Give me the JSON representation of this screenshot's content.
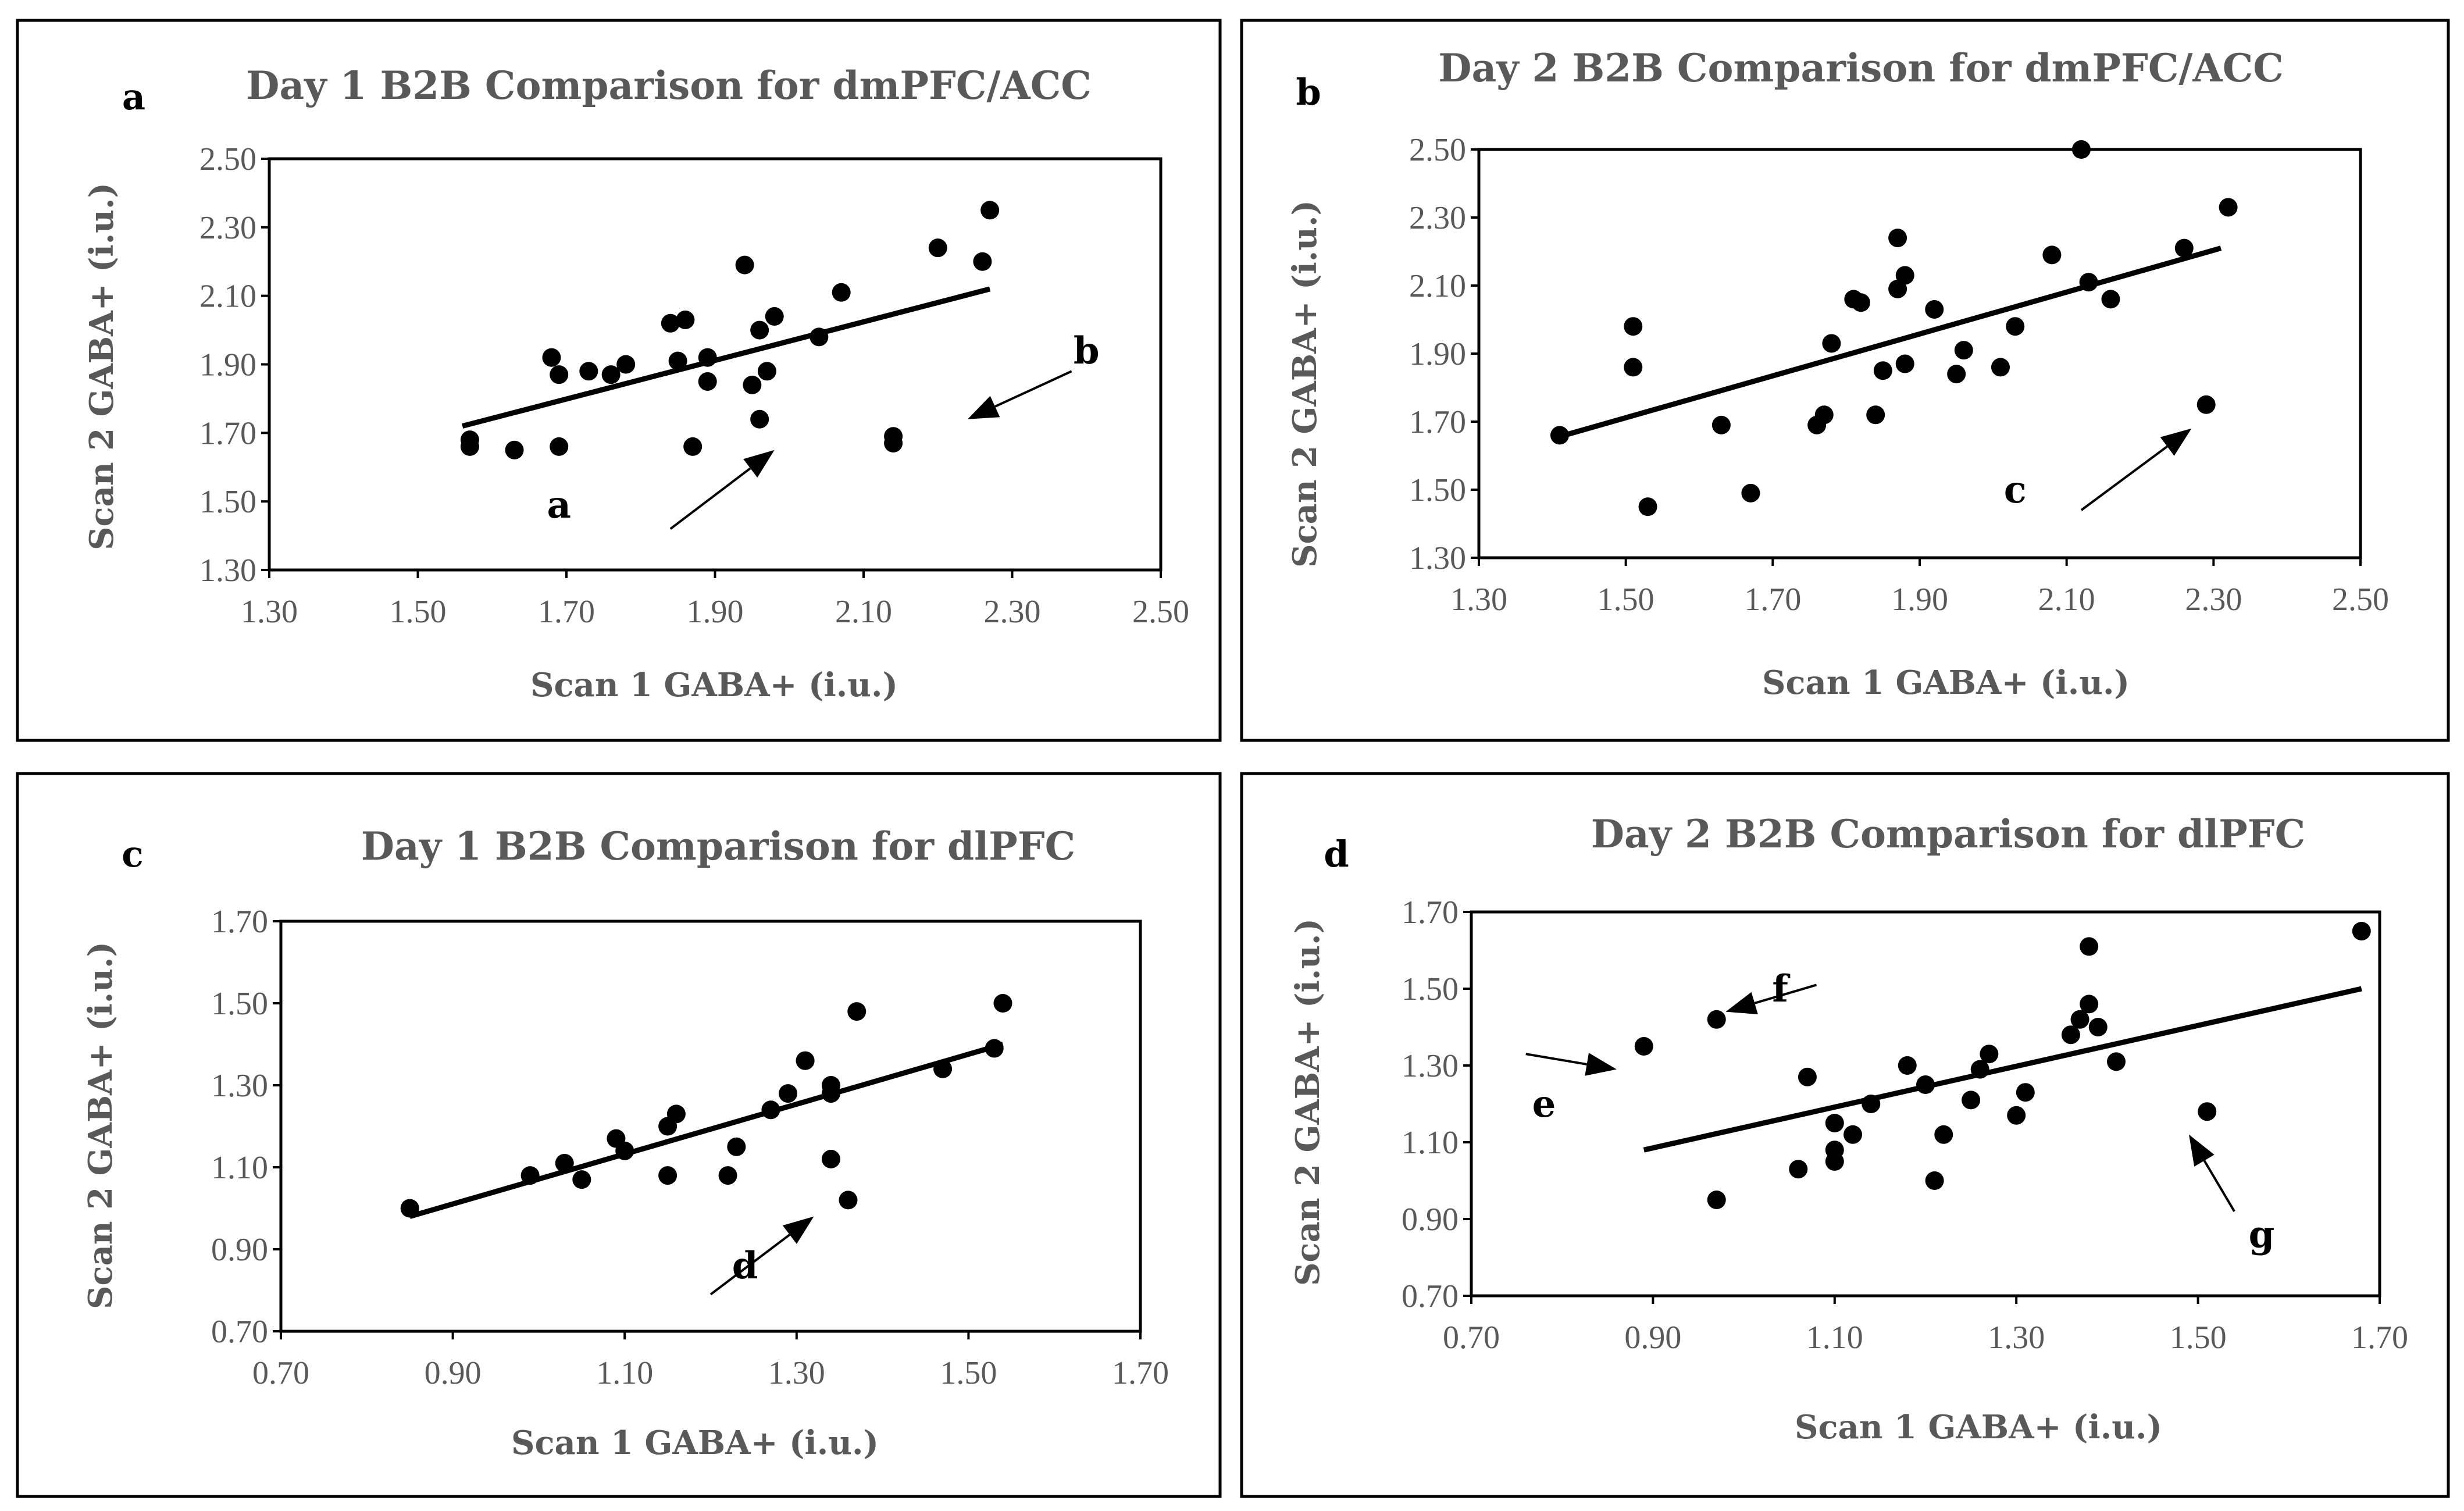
{
  "chart_data": [
    {
      "type": "scatter",
      "panel_label": "a",
      "title": "Day 1 B2B Comparison for dmPFC/ACC",
      "xlabel": "Scan 1 GABA+ (i.u.)",
      "ylabel": "Scan 2 GABA+ (i.u.)",
      "xlim": [
        1.3,
        2.5
      ],
      "ylim": [
        1.3,
        2.5
      ],
      "xticks": [
        "1.30",
        "1.50",
        "1.70",
        "1.90",
        "2.10",
        "2.30",
        "2.50"
      ],
      "yticks": [
        "1.30",
        "1.50",
        "1.70",
        "1.90",
        "2.10",
        "2.30",
        "2.50"
      ],
      "points": [
        [
          1.57,
          1.66
        ],
        [
          1.57,
          1.68
        ],
        [
          1.63,
          1.65
        ],
        [
          1.68,
          1.92
        ],
        [
          1.69,
          1.66
        ],
        [
          1.69,
          1.87
        ],
        [
          1.73,
          1.88
        ],
        [
          1.76,
          1.87
        ],
        [
          1.78,
          1.9
        ],
        [
          1.84,
          2.02
        ],
        [
          1.85,
          1.91
        ],
        [
          1.86,
          2.03
        ],
        [
          1.87,
          1.66
        ],
        [
          1.89,
          1.92
        ],
        [
          1.89,
          1.85
        ],
        [
          1.94,
          2.19
        ],
        [
          1.95,
          1.84
        ],
        [
          1.96,
          1.74
        ],
        [
          1.96,
          2.0
        ],
        [
          1.97,
          1.88
        ],
        [
          1.98,
          2.04
        ],
        [
          2.04,
          1.98
        ],
        [
          2.07,
          2.11
        ],
        [
          2.14,
          1.69
        ],
        [
          2.14,
          1.67
        ],
        [
          2.2,
          2.24
        ],
        [
          2.26,
          2.2
        ],
        [
          2.27,
          2.35
        ]
      ],
      "trendline": {
        "x": [
          1.56,
          2.27
        ],
        "y": [
          1.72,
          2.12
        ]
      },
      "annotations": [
        {
          "text": "a",
          "x": 1.69,
          "y": 1.49,
          "arrow_from": [
            1.84,
            1.42
          ],
          "arrow_to": [
            1.98,
            1.65
          ]
        },
        {
          "text": "b",
          "x": 2.4,
          "y": 1.94,
          "arrow_from": [
            2.38,
            1.88
          ],
          "arrow_to": [
            2.24,
            1.74
          ]
        }
      ]
    },
    {
      "type": "scatter",
      "panel_label": "b",
      "title": "Day 2 B2B Comparison for dmPFC/ACC",
      "xlabel": "Scan 1 GABA+ (i.u.)",
      "ylabel": "Scan 2 GABA+ (i.u.)",
      "xlim": [
        1.3,
        2.5
      ],
      "ylim": [
        1.3,
        2.5
      ],
      "xticks": [
        "1.30",
        "1.50",
        "1.70",
        "1.90",
        "2.10",
        "2.30",
        "2.50"
      ],
      "yticks": [
        "1.30",
        "1.50",
        "1.70",
        "1.90",
        "2.10",
        "2.30",
        "2.50"
      ],
      "points": [
        [
          1.41,
          1.66
        ],
        [
          1.51,
          1.98
        ],
        [
          1.51,
          1.86
        ],
        [
          1.53,
          1.45
        ],
        [
          1.63,
          1.69
        ],
        [
          1.67,
          1.49
        ],
        [
          1.76,
          1.69
        ],
        [
          1.77,
          1.72
        ],
        [
          1.78,
          1.93
        ],
        [
          1.81,
          2.06
        ],
        [
          1.82,
          2.05
        ],
        [
          1.84,
          1.72
        ],
        [
          1.85,
          1.85
        ],
        [
          1.87,
          2.24
        ],
        [
          1.87,
          2.09
        ],
        [
          1.88,
          2.13
        ],
        [
          1.88,
          1.87
        ],
        [
          1.92,
          2.03
        ],
        [
          1.95,
          1.84
        ],
        [
          1.96,
          1.91
        ],
        [
          2.01,
          1.86
        ],
        [
          2.03,
          1.98
        ],
        [
          2.08,
          2.19
        ],
        [
          2.12,
          2.5
        ],
        [
          2.13,
          2.11
        ],
        [
          2.16,
          2.06
        ],
        [
          2.26,
          2.21
        ],
        [
          2.29,
          1.75
        ],
        [
          2.32,
          2.33
        ]
      ],
      "trendline": {
        "x": [
          1.4,
          2.31
        ],
        "y": [
          1.65,
          2.21
        ]
      },
      "annotations": [
        {
          "text": "c",
          "x": 2.03,
          "y": 1.5,
          "arrow_from": [
            2.12,
            1.44
          ],
          "arrow_to": [
            2.27,
            1.68
          ]
        }
      ]
    },
    {
      "type": "scatter",
      "panel_label": "c",
      "title": "Day 1 B2B Comparison for dlPFC",
      "xlabel": "Scan 1 GABA+ (i.u.)",
      "ylabel": "Scan 2 GABA+ (i.u.)",
      "xlim": [
        0.7,
        1.7
      ],
      "ylim": [
        0.7,
        1.7
      ],
      "xticks": [
        "0.70",
        "0.90",
        "1.10",
        "1.30",
        "1.50",
        "1.70"
      ],
      "yticks": [
        "0.70",
        "0.90",
        "1.10",
        "1.30",
        "1.50",
        "1.70"
      ],
      "points": [
        [
          0.85,
          1.0
        ],
        [
          0.99,
          1.08
        ],
        [
          1.03,
          1.11
        ],
        [
          1.05,
          1.07
        ],
        [
          1.09,
          1.17
        ],
        [
          1.1,
          1.14
        ],
        [
          1.15,
          1.2
        ],
        [
          1.15,
          1.08
        ],
        [
          1.16,
          1.23
        ],
        [
          1.22,
          1.08
        ],
        [
          1.23,
          1.15
        ],
        [
          1.27,
          1.24
        ],
        [
          1.29,
          1.28
        ],
        [
          1.31,
          1.36
        ],
        [
          1.31,
          1.36
        ],
        [
          1.34,
          1.12
        ],
        [
          1.34,
          1.3
        ],
        [
          1.34,
          1.28
        ],
        [
          1.36,
          1.02
        ],
        [
          1.37,
          1.48
        ],
        [
          1.47,
          1.34
        ],
        [
          1.53,
          1.39
        ],
        [
          1.54,
          1.5
        ]
      ],
      "trendline": {
        "x": [
          0.85,
          1.54
        ],
        "y": [
          0.98,
          1.4
        ]
      },
      "annotations": [
        {
          "text": "d",
          "x": 1.24,
          "y": 0.86,
          "arrow_from": [
            1.2,
            0.79
          ],
          "arrow_to": [
            1.32,
            0.98
          ]
        }
      ]
    },
    {
      "type": "scatter",
      "panel_label": "d",
      "title": "Day 2 B2B Comparison for dlPFC",
      "xlabel": "Scan 1 GABA+ (i.u.)",
      "ylabel": "Scan 2 GABA+ (i.u.)",
      "xlim": [
        0.7,
        1.7
      ],
      "ylim": [
        0.7,
        1.7
      ],
      "xticks": [
        "0.70",
        "0.90",
        "1.10",
        "1.30",
        "1.50",
        "1.70"
      ],
      "yticks": [
        "0.70",
        "0.90",
        "1.10",
        "1.30",
        "1.50",
        "1.70"
      ],
      "points": [
        [
          0.89,
          1.35
        ],
        [
          0.97,
          1.42
        ],
        [
          0.97,
          0.95
        ],
        [
          1.06,
          1.03
        ],
        [
          1.07,
          1.27
        ],
        [
          1.1,
          1.08
        ],
        [
          1.1,
          1.05
        ],
        [
          1.1,
          1.15
        ],
        [
          1.12,
          1.12
        ],
        [
          1.14,
          1.2
        ],
        [
          1.18,
          1.3
        ],
        [
          1.2,
          1.25
        ],
        [
          1.21,
          1.0
        ],
        [
          1.22,
          1.12
        ],
        [
          1.25,
          1.21
        ],
        [
          1.26,
          1.29
        ],
        [
          1.27,
          1.33
        ],
        [
          1.3,
          1.17
        ],
        [
          1.31,
          1.23
        ],
        [
          1.36,
          1.38
        ],
        [
          1.37,
          1.42
        ],
        [
          1.38,
          1.61
        ],
        [
          1.38,
          1.46
        ],
        [
          1.39,
          1.4
        ],
        [
          1.41,
          1.31
        ],
        [
          1.51,
          1.18
        ],
        [
          1.68,
          1.65
        ]
      ],
      "trendline": {
        "x": [
          0.89,
          1.68
        ],
        "y": [
          1.08,
          1.5
        ]
      },
      "annotations": [
        {
          "text": "e",
          "x": 0.78,
          "y": 1.2,
          "arrow_from": [
            0.76,
            1.33
          ],
          "arrow_to": [
            0.86,
            1.29
          ]
        },
        {
          "text": "f",
          "x": 1.04,
          "y": 1.5,
          "arrow_from": [
            1.08,
            1.51
          ],
          "arrow_to": [
            0.98,
            1.44
          ]
        },
        {
          "text": "g",
          "x": 1.57,
          "y": 0.86,
          "arrow_from": [
            1.54,
            0.92
          ],
          "arrow_to": [
            1.49,
            1.12
          ]
        }
      ]
    }
  ]
}
